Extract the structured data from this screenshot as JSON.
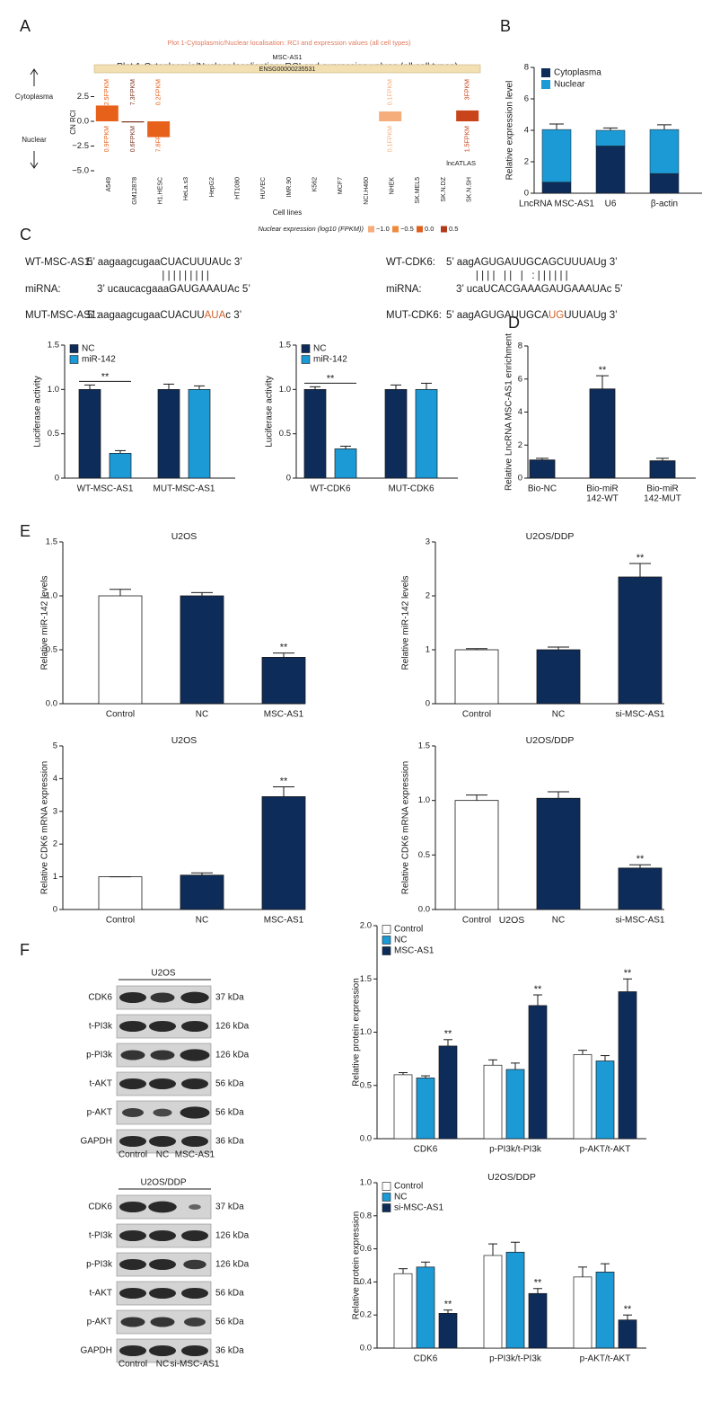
{
  "panel_labels": [
    "A",
    "B",
    "C",
    "D",
    "E",
    "F"
  ],
  "sequences": [
    [
      {
        "label": "WT-MSC-AS1:",
        "parts": [
          {
            "text": "5’ aagaagcugaaCUACUUUAUc 3’"
          }
        ]
      },
      {
        "parts": [
          {
            "text": "| | | | | | | | |"
          }
        ]
      },
      {
        "label": "miRNA:",
        "parts": [
          {
            "text": "3’ ucaucacgaaaGAUGAAAUAc 5’"
          }
        ]
      },
      {
        "label": "MUT-MSC-AS1:",
        "parts": [
          {
            "text": "5’ aagaagcugaaCUACUU"
          },
          {
            "text": "AUA",
            "color": "#d2622a"
          },
          {
            "text": "c 3’"
          }
        ]
      }
    ],
    [
      {
        "label": "WT-CDK6:",
        "parts": [
          {
            "text": "5’ aagAGUGAUUGCAGCUUUAUg 3’"
          }
        ]
      },
      {
        "parts": [
          {
            "text": "| | | |   | |   |   : | | | | | |"
          }
        ]
      },
      {
        "label": "miRNA:",
        "parts": [
          {
            "text": "3’ ucaUCACGAAAGAUGAAAUAc 5’"
          }
        ]
      },
      {
        "label": "MUT-CDK6:",
        "parts": [
          {
            "text": "5’ aagAGUGAUUGCA"
          },
          {
            "text": "UG",
            "color": "#d2622a"
          },
          {
            "text": "UUUAUg 3’"
          }
        ]
      }
    ]
  ],
  "blots": [
    {
      "title": "U2OS",
      "lanes": [
        "Control",
        "NC",
        "MSC-AS1"
      ],
      "rows": [
        {
          "protein": "CDK6",
          "size": "37 kDa"
        },
        {
          "protein": "t-PI3k",
          "size": "126 kDa"
        },
        {
          "protein": "p-PI3k",
          "size": "126 kDa"
        },
        {
          "protein": "t-AKT",
          "size": "56 kDa"
        },
        {
          "protein": "p-AKT",
          "size": "56 kDa"
        },
        {
          "protein": "GAPDH",
          "size": "36 kDa"
        }
      ]
    },
    {
      "title": "U2OS/DDP",
      "lanes": [
        "Control",
        "NC",
        "si-MSC-AS1"
      ],
      "rows": [
        {
          "protein": "CDK6",
          "size": "37 kDa"
        },
        {
          "protein": "t-PI3k",
          "size": "126 kDa"
        },
        {
          "protein": "p-PI3k",
          "size": "126 kDa"
        },
        {
          "protein": "t-AKT",
          "size": "56 kDa"
        },
        {
          "protein": "p-AKT",
          "size": "56 kDa"
        },
        {
          "protein": "GAPDH",
          "size": "36 kDa"
        }
      ]
    }
  ],
  "chart_data": [
    {
      "type": "diverging_bar",
      "title": "Plot 1-Cytoplasmic/Nuclear localisation: RCI and expression values (all cell types)",
      "subtitle": "MSC-AS1",
      "gene_id": "ENSG00000235531",
      "ylabel": "CN RCI",
      "xlabel": "Cell lines",
      "source": "lncATLAS",
      "direction_labels": [
        "Cytoplasma",
        "Nuclear"
      ],
      "categories": [
        "A549",
        "GM12878",
        "H1.HESC",
        "HeLa.s3",
        "HepG2",
        "HT1080",
        "HUVEC",
        "IMR.90",
        "K562",
        "MCF7",
        "NCI.H460",
        "NHEK",
        "SK.MEL5",
        "SK.N.DZ",
        "SK.N.SH"
      ],
      "values": [
        1.6,
        -0.1,
        -1.6,
        null,
        null,
        null,
        null,
        null,
        null,
        null,
        null,
        1.0,
        null,
        null,
        1.1
      ],
      "colors": [
        "#e8611a",
        "#7a3420",
        "#e8611a",
        null,
        null,
        null,
        null,
        null,
        null,
        null,
        null,
        "#f5ad7b",
        null,
        null,
        "#c9441a"
      ],
      "cytoplasm_labels": [
        "2.5FPKM",
        "7.3FPKM",
        "0.2FPKM",
        null,
        null,
        null,
        null,
        null,
        null,
        null,
        null,
        "0.1FPKM",
        null,
        null,
        "3FPKM"
      ],
      "nucleus_labels": [
        "0.9FPKM",
        "0.6FPKM",
        "7.8FPKM",
        null,
        null,
        null,
        null,
        null,
        null,
        null,
        null,
        "0.1FPKM",
        null,
        null,
        "1.5FPKM"
      ],
      "ylim": [
        -5,
        5
      ],
      "yticks": [
        2.5,
        {
          "value": 0,
          "label": "0.0"
        },
        {
          "value": -2.5,
          "label": "−2.5"
        },
        {
          "value": -5,
          "label": "−5.0"
        }
      ],
      "legend_title": "Nuclear expression (log10 (FPKM))",
      "legend": [
        {
          "label": "−1.0",
          "color": "#f5ad7b"
        },
        {
          "label": "−0.5",
          "color": "#ef8a3c"
        },
        {
          "label": "0.0",
          "color": "#e0601c"
        },
        {
          "label": "0.5",
          "color": "#b23a1a"
        }
      ]
    },
    {
      "type": "stacked_bar",
      "ylabel": "Relative expression level",
      "categories": [
        "LncRNA MSC-AS1",
        "U6",
        "β-actin"
      ],
      "series": [
        {
          "name": "Cytoplasma",
          "color": "#0d2c5a",
          "values": [
            0.7,
            3.0,
            1.25
          ],
          "errors": [
            0.05,
            0.12,
            0.08
          ]
        },
        {
          "name": "Nuclear",
          "color": "#1c9ad6",
          "values": [
            3.35,
            1.0,
            2.8
          ],
          "errors": [
            0.35,
            0.15,
            0.3
          ]
        }
      ],
      "ylim": [
        0,
        8
      ],
      "yticks": [
        0,
        2,
        4,
        6,
        8
      ],
      "legend": "upper left"
    },
    {
      "type": "grouped_bar",
      "ylabel": "Luciferase activity",
      "categories": [
        "WT-MSC-AS1",
        "MUT-MSC-AS1"
      ],
      "series": [
        {
          "name": "NC",
          "color": "#0d2c5a",
          "values": [
            1.0,
            1.0
          ],
          "errors": [
            0.05,
            0.06
          ]
        },
        {
          "name": "miR-142",
          "color": "#1c9ad6",
          "values": [
            0.28,
            1.0
          ],
          "errors": [
            0.03,
            0.04
          ]
        }
      ],
      "group_annotations": [
        "**",
        null
      ],
      "ylim": [
        0,
        1.5
      ],
      "yticks": [
        0,
        0.5,
        {
          "value": 1,
          "label": "1.0"
        },
        1.5
      ],
      "legend": "upper left"
    },
    {
      "type": "grouped_bar",
      "ylabel": "Luciferase activity",
      "categories": [
        "WT-CDK6",
        "MUT-CDK6"
      ],
      "series": [
        {
          "name": "NC",
          "color": "#0d2c5a",
          "values": [
            1.0,
            1.0
          ],
          "errors": [
            0.03,
            0.05
          ]
        },
        {
          "name": "miR-142",
          "color": "#1c9ad6",
          "values": [
            0.33,
            1.0
          ],
          "errors": [
            0.03,
            0.07
          ]
        }
      ],
      "group_annotations": [
        "**",
        null
      ],
      "ylim": [
        0,
        1.5
      ],
      "yticks": [
        0,
        0.5,
        {
          "value": 1,
          "label": "1.0"
        },
        1.5
      ],
      "legend": "upper left"
    },
    {
      "type": "bar",
      "ylabel": "Relative LncRNA MSC-AS1 enrichment",
      "categories": [
        [
          "Bio-NC"
        ],
        [
          "Bio-miR",
          "142-WT"
        ],
        [
          "Bio-miR",
          "142-MUT"
        ]
      ],
      "color": "#0d2c5a",
      "values": [
        1.1,
        5.4,
        1.05
      ],
      "errors": [
        0.1,
        0.8,
        0.15
      ],
      "annotations": [
        null,
        "**",
        null
      ],
      "ylim": [
        0,
        8
      ],
      "yticks": [
        0,
        2,
        4,
        6,
        8
      ]
    },
    {
      "type": "bar",
      "title": "U2OS",
      "ylabel": "Relative miR-142 levels",
      "categories": [
        "Control",
        "NC",
        "MSC-AS1"
      ],
      "colors": [
        "#ffffff",
        "#0d2c5a",
        "#0d2c5a"
      ],
      "values": [
        1.0,
        1.0,
        0.43
      ],
      "errors": [
        0.06,
        0.03,
        0.04
      ],
      "annotations": [
        null,
        null,
        "**"
      ],
      "ylim": [
        0,
        1.5
      ],
      "yticks": [
        {
          "value": 0,
          "label": "0.0"
        },
        0.5,
        {
          "value": 1,
          "label": "1.0"
        },
        1.5
      ]
    },
    {
      "type": "bar",
      "title": "U2OS/DDP",
      "ylabel": "Relative miR-142 levels",
      "categories": [
        "Control",
        "NC",
        "si-MSC-AS1"
      ],
      "colors": [
        "#ffffff",
        "#0d2c5a",
        "#0d2c5a"
      ],
      "values": [
        1.0,
        1.0,
        2.35
      ],
      "errors": [
        0.02,
        0.05,
        0.25
      ],
      "annotations": [
        null,
        null,
        "**"
      ],
      "ylim": [
        0,
        3
      ],
      "yticks": [
        0,
        1,
        2,
        3
      ]
    },
    {
      "type": "bar",
      "title": "U2OS",
      "ylabel": "Relative CDK6 mRNA expression",
      "categories": [
        "Control",
        "NC",
        "MSC-AS1"
      ],
      "colors": [
        "#ffffff",
        "#0d2c5a",
        "#0d2c5a"
      ],
      "values": [
        1.0,
        1.05,
        3.45
      ],
      "errors": [
        0.0,
        0.07,
        0.3
      ],
      "annotations": [
        null,
        null,
        "**"
      ],
      "ylim": [
        0,
        5
      ],
      "yticks": [
        0,
        1,
        2,
        3,
        4,
        5
      ]
    },
    {
      "type": "bar",
      "title": "U2OS/DDP",
      "ylabel": "Relative CDK6 mRNA expression",
      "categories": [
        "Control",
        "NC",
        "si-MSC-AS1"
      ],
      "colors": [
        "#ffffff",
        "#0d2c5a",
        "#0d2c5a"
      ],
      "values": [
        1.0,
        1.02,
        0.38
      ],
      "errors": [
        0.05,
        0.06,
        0.03
      ],
      "annotations": [
        null,
        null,
        "**"
      ],
      "ylim": [
        0,
        1.5
      ],
      "yticks": [
        {
          "value": 0,
          "label": "0.0"
        },
        0.5,
        {
          "value": 1,
          "label": "1.0"
        },
        1.5
      ]
    },
    {
      "type": "grouped_bar",
      "title": "U2OS",
      "ylabel": "Relative protein expression",
      "categories": [
        "CDK6",
        "p-PI3k/t-PI3k",
        "p-AKT/t-AKT"
      ],
      "series": [
        {
          "name": "Control",
          "color": "#ffffff",
          "values": [
            0.6,
            0.69,
            0.79
          ],
          "errors": [
            0.02,
            0.05,
            0.04
          ]
        },
        {
          "name": "NC",
          "color": "#1c9ad6",
          "values": [
            0.57,
            0.65,
            0.73
          ],
          "errors": [
            0.02,
            0.06,
            0.05
          ]
        },
        {
          "name": "MSC-AS1",
          "color": "#0d2c5a",
          "values": [
            0.87,
            1.25,
            1.38
          ],
          "errors": [
            0.06,
            0.1,
            0.12
          ],
          "annotations": [
            "**",
            "**",
            "**"
          ]
        }
      ],
      "ylim": [
        0,
        2
      ],
      "yticks": [
        {
          "value": 0,
          "label": "0.0"
        },
        0.5,
        {
          "value": 1,
          "label": "1.0"
        },
        1.5,
        {
          "value": 2,
          "label": "2.0"
        }
      ],
      "legend": "upper left"
    },
    {
      "type": "grouped_bar",
      "title": "U2OS/DDP",
      "ylabel": "Relative protein expression",
      "categories": [
        "CDK6",
        "p-PI3k/t-PI3k",
        "p-AKT/t-AKT"
      ],
      "series": [
        {
          "name": "Control",
          "color": "#ffffff",
          "values": [
            0.45,
            0.56,
            0.43
          ],
          "errors": [
            0.03,
            0.07,
            0.06
          ]
        },
        {
          "name": "NC",
          "color": "#1c9ad6",
          "values": [
            0.49,
            0.58,
            0.46
          ],
          "errors": [
            0.03,
            0.06,
            0.05
          ]
        },
        {
          "name": "si-MSC-AS1",
          "color": "#0d2c5a",
          "values": [
            0.21,
            0.33,
            0.17
          ],
          "errors": [
            0.02,
            0.03,
            0.03
          ],
          "annotations": [
            "**",
            "**",
            "**"
          ]
        }
      ],
      "ylim": [
        0,
        1
      ],
      "yticks": [
        {
          "value": 0,
          "label": "0.0"
        },
        0.2,
        0.4,
        0.6,
        0.8,
        {
          "value": 1,
          "label": "1.0"
        }
      ],
      "legend": "upper left"
    }
  ]
}
